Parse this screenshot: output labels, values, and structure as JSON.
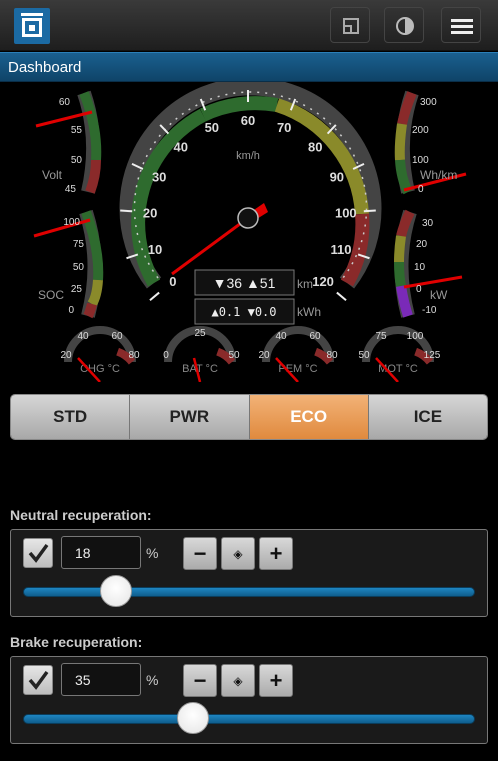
{
  "header": {
    "logo": "app-logo",
    "buttons": [
      "window-icon",
      "contrast-icon",
      "menu-icon"
    ]
  },
  "nav": {
    "title": "Dashboard"
  },
  "gauges": {
    "speed": {
      "unit": "km/h",
      "ticks": [
        "0",
        "10",
        "20",
        "30",
        "40",
        "50",
        "60",
        "70",
        "80",
        "90",
        "100",
        "110",
        "120"
      ],
      "odo_line1": "▼36 ▲51",
      "odo_line1_unit": "km",
      "odo_line2": "▲0.1 ▼0.0",
      "odo_line2_unit": "kWh"
    },
    "volt": {
      "label": "Volt",
      "ticks": [
        "60",
        "55",
        "50",
        "45"
      ]
    },
    "soc": {
      "label": "SOC",
      "ticks": [
        "100",
        "75",
        "50",
        "25",
        "0"
      ]
    },
    "whkm": {
      "label": "Wh/km",
      "ticks": [
        "300",
        "200",
        "100",
        "0"
      ]
    },
    "kw": {
      "label": "kW",
      "ticks": [
        "30",
        "20",
        "10",
        "0",
        "-10"
      ]
    },
    "small": [
      {
        "label": "CHG °C",
        "ticks": [
          "20",
          "40",
          "60",
          "80"
        ]
      },
      {
        "label": "BAT °C",
        "ticks": [
          "0",
          "25",
          "50"
        ]
      },
      {
        "label": "PEM °C",
        "ticks": [
          "20",
          "40",
          "60",
          "80"
        ]
      },
      {
        "label": "MOT °C",
        "ticks": [
          "50",
          "75",
          "100",
          "125"
        ]
      }
    ]
  },
  "modes": {
    "items": [
      "STD",
      "PWR",
      "ECO",
      "ICE"
    ],
    "active": "ECO"
  },
  "neutral": {
    "label": "Neutral recuperation:",
    "value": "18",
    "unit": "%",
    "checked": true,
    "level_percent": 18
  },
  "brake": {
    "label": "Brake recuperation:",
    "value": "35",
    "unit": "%",
    "checked": true,
    "level_percent": 35
  },
  "colors": {
    "accent": "#1b6aa3",
    "active_mode": "#e89a52",
    "gauge_green": "#2e6b2e",
    "gauge_yellow": "#8a8a2a",
    "gauge_red": "#8a2a2a",
    "needle": "#e00000"
  }
}
